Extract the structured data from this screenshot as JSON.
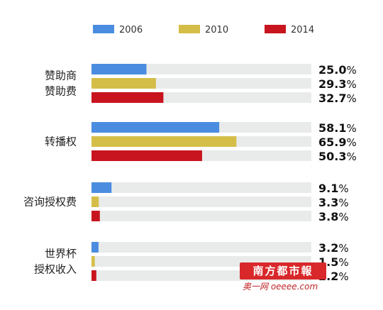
{
  "chart_data": {
    "type": "bar",
    "orientation": "horizontal",
    "categories": [
      [
        "赞助商",
        "赞助费"
      ],
      [
        "转播权"
      ],
      [
        "咨询授权费"
      ],
      [
        "世界杯",
        "授权收入"
      ]
    ],
    "series": [
      {
        "name": "2006",
        "color": "#4a8de0",
        "values": [
          25.0,
          58.1,
          9.1,
          3.2
        ]
      },
      {
        "name": "2010",
        "color": "#d4be48",
        "values": [
          29.3,
          65.9,
          3.3,
          1.5
        ]
      },
      {
        "name": "2014",
        "color": "#c8141e",
        "values": [
          32.7,
          50.3,
          3.8,
          2.2
        ]
      }
    ],
    "value_labels": [
      [
        "25.0",
        "29.3",
        "32.7"
      ],
      [
        "58.1",
        "65.9",
        "50.3"
      ],
      [
        "9.1",
        "3.3",
        "3.8"
      ],
      [
        "3.2",
        "1.5",
        "2.2"
      ]
    ],
    "unit": "%",
    "xlim": [
      0,
      100
    ],
    "track_color": "#e9ebea",
    "legend": {
      "position": "top"
    },
    "grid": false
  },
  "watermark": {
    "brand": "南方都市報",
    "site": "奥一网 oeeee.com"
  }
}
